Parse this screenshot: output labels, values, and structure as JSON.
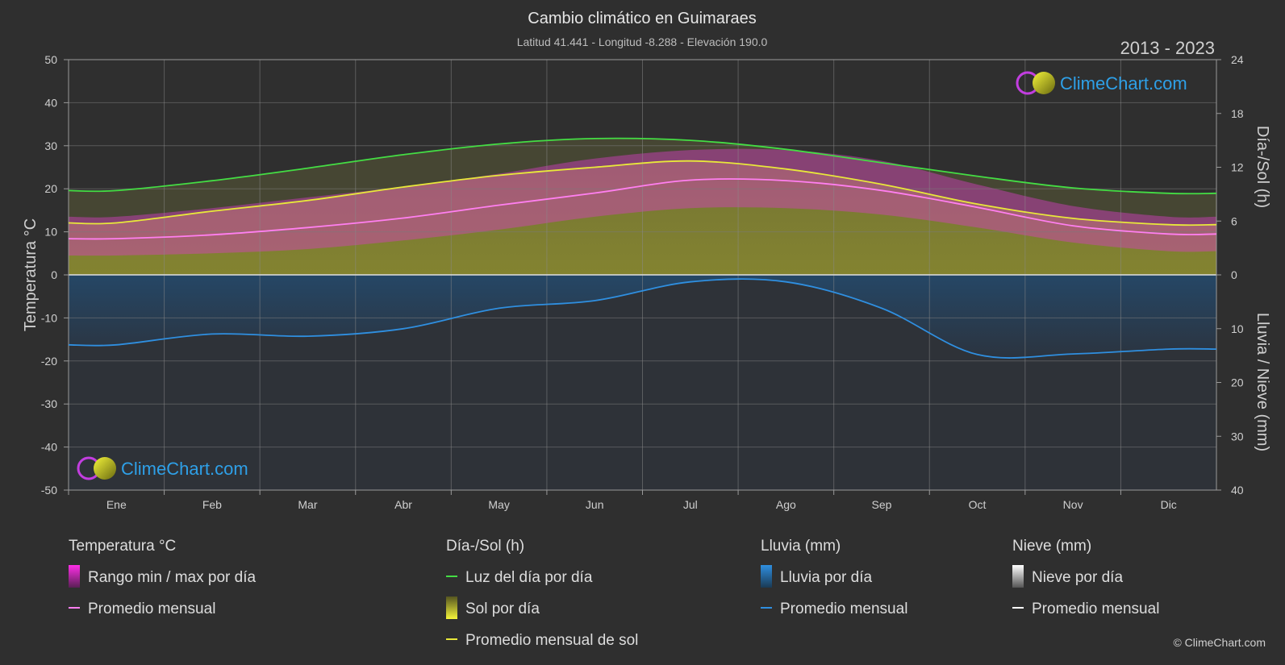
{
  "title": "Cambio climático en Guimaraes",
  "subtitle": "Latitud 41.441 - Longitud -8.288 - Elevación 190.0",
  "year_range": "2013 - 2023",
  "brand": "ClimeChart.com",
  "copyright": "© ClimeChart.com",
  "colors": {
    "background": "#2f2f2f",
    "temp_range": "#d63fc4",
    "temp_avg": "#ff7ff0",
    "daylight": "#44dd44",
    "sunshine": "#9c9c3a",
    "sun_avg": "#e8e83a",
    "rain": "#2a5f8f",
    "rain_avg": "#2f8fe0",
    "snow_avg": "#ffffff",
    "brand": "#2ea0e8"
  },
  "chart_data": {
    "type": "line",
    "months": [
      "Ene",
      "Feb",
      "Mar",
      "Abr",
      "May",
      "Jun",
      "Jul",
      "Ago",
      "Sep",
      "Oct",
      "Nov",
      "Dic"
    ],
    "axes": {
      "left": {
        "label": "Temperatura °C",
        "min": -50,
        "max": 50,
        "ticks": [
          50,
          40,
          30,
          20,
          10,
          0,
          -10,
          -20,
          -30,
          -40,
          -50
        ]
      },
      "right_top": {
        "label": "Día-/Sol (h)",
        "min": 0,
        "max": 24,
        "ticks": [
          24,
          18,
          12,
          6,
          0
        ]
      },
      "right_bottom": {
        "label": "Lluvia / Nieve (mm)",
        "min": 0,
        "max": 40,
        "ticks": [
          0,
          10,
          20,
          30,
          40
        ]
      }
    },
    "series": [
      {
        "name": "Luz del día por día",
        "unit": "h",
        "values": [
          9.4,
          10.5,
          11.9,
          13.4,
          14.6,
          15.2,
          15.0,
          14.0,
          12.5,
          11.0,
          9.7,
          9.1
        ]
      },
      {
        "name": "Promedio mensual de sol",
        "unit": "h",
        "values": [
          5.8,
          7.1,
          8.3,
          9.8,
          11.1,
          12.0,
          12.7,
          11.8,
          10.1,
          7.9,
          6.3,
          5.6
        ]
      },
      {
        "name": "Promedio mensual",
        "group": "Temperatura °C",
        "unit": "°C",
        "values": [
          8.4,
          9.3,
          11.0,
          13.2,
          16.2,
          19.0,
          22.0,
          21.9,
          19.6,
          15.7,
          11.4,
          9.5
        ]
      },
      {
        "name": "Promedio mensual",
        "group": "Lluvia (mm)",
        "unit": "mm",
        "values": [
          13.0,
          11.0,
          11.4,
          10.0,
          6.2,
          4.8,
          1.3,
          1.3,
          6.2,
          14.8,
          14.7,
          13.8
        ]
      },
      {
        "name": "Promedio mensual",
        "group": "Nieve (mm)",
        "unit": "mm",
        "values": [
          0,
          0,
          0,
          0,
          0,
          0,
          0,
          0,
          0,
          0,
          0,
          0
        ]
      }
    ],
    "temp_range": {
      "name": "Rango min / max por día",
      "min": [
        4.5,
        5.0,
        6.0,
        8.0,
        10.5,
        13.5,
        15.5,
        15.5,
        14.0,
        11.0,
        7.5,
        5.5
      ],
      "max": [
        13.5,
        15.5,
        18.0,
        20.5,
        23.5,
        27.0,
        29.0,
        29.0,
        26.5,
        21.0,
        16.0,
        13.5
      ]
    },
    "grid": true
  },
  "legend": {
    "groups": [
      {
        "title": "Temperatura °C",
        "items": [
          {
            "label": "Rango min / max por día",
            "swatch": "bar-magenta"
          },
          {
            "label": "Promedio mensual",
            "swatch": "line-pink"
          }
        ]
      },
      {
        "title": "Día-/Sol (h)",
        "items": [
          {
            "label": "Luz del día por día",
            "swatch": "line-green"
          },
          {
            "label": "Sol por día",
            "swatch": "bar-yellow"
          },
          {
            "label": "Promedio mensual de sol",
            "swatch": "line-yellow"
          }
        ]
      },
      {
        "title": "Lluvia (mm)",
        "items": [
          {
            "label": "Lluvia por día",
            "swatch": "bar-blue"
          },
          {
            "label": "Promedio mensual",
            "swatch": "line-blue"
          }
        ]
      },
      {
        "title": "Nieve (mm)",
        "items": [
          {
            "label": "Nieve por día",
            "swatch": "bar-white"
          },
          {
            "label": "Promedio mensual",
            "swatch": "line-white"
          }
        ]
      }
    ]
  }
}
